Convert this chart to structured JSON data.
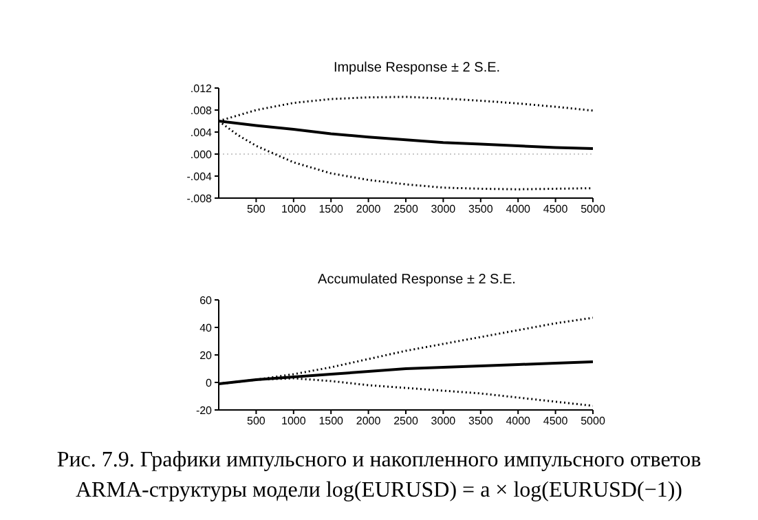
{
  "chart_data": [
    {
      "type": "line",
      "title": "Impulse Response ± 2 S.E.",
      "xlim": [
        0,
        5000
      ],
      "xticks": [
        500,
        1000,
        1500,
        2000,
        2500,
        3000,
        3500,
        4000,
        4500,
        5000
      ],
      "ylim": [
        -0.008,
        0.012
      ],
      "yticks": [
        {
          "value": 0.012,
          "label": ".012"
        },
        {
          "value": 0.008,
          "label": ".008"
        },
        {
          "value": 0.004,
          "label": ".004"
        },
        {
          "value": 0,
          "label": ".000"
        },
        {
          "value": -0.004,
          "label": "-.004"
        },
        {
          "value": -0.008,
          "label": "-.008"
        }
      ],
      "ref_lines": [
        {
          "axis": "y",
          "value": 0,
          "color": "#c8c8c8",
          "line_style": "dotted"
        }
      ],
      "series": [
        {
          "color": "#000000",
          "line_style": "dotted",
          "x": [
            0,
            500,
            1000,
            1500,
            2000,
            2500,
            3000,
            3500,
            4000,
            4500,
            5000
          ],
          "values": [
            0.006,
            0.008,
            0.0093,
            0.01,
            0.0103,
            0.0104,
            0.0101,
            0.0097,
            0.0092,
            0.0086,
            0.0079
          ]
        },
        {
          "color": "#000000",
          "line_style": "solid",
          "x": [
            0,
            500,
            1000,
            1500,
            2000,
            2500,
            3000,
            3500,
            4000,
            4500,
            5000
          ],
          "values": [
            0.006,
            0.0052,
            0.0045,
            0.0037,
            0.0031,
            0.0026,
            0.0021,
            0.0018,
            0.0015,
            0.0012,
            0.001
          ]
        },
        {
          "color": "#000000",
          "line_style": "dotted",
          "x": [
            0,
            250,
            500,
            1000,
            1500,
            2000,
            2500,
            3000,
            3500,
            4000,
            4500,
            5000
          ],
          "values": [
            0.006,
            0.0035,
            0.0015,
            -0.0015,
            -0.0035,
            -0.0047,
            -0.0055,
            -0.0061,
            -0.0063,
            -0.0064,
            -0.0063,
            -0.0062
          ]
        }
      ]
    },
    {
      "type": "line",
      "title": "Accumulated Response ± 2 S.E.",
      "xlim": [
        0,
        5000
      ],
      "xticks": [
        500,
        1000,
        1500,
        2000,
        2500,
        3000,
        3500,
        4000,
        4500,
        5000
      ],
      "ylim": [
        -20,
        60
      ],
      "yticks": [
        60,
        40,
        20,
        0,
        -20
      ],
      "annotations": [
        "Рис. 7.9. Графики импульсного и накопленного импульсного ответов",
        "ARMA-структуры модели log(EURUSD) = a × log(EURUSD(−1))"
      ],
      "series": [
        {
          "color": "#000000",
          "line_style": "dotted",
          "x": [
            0,
            500,
            1000,
            1500,
            2000,
            2500,
            3000,
            3500,
            4000,
            4500,
            5000
          ],
          "values": [
            -1,
            2,
            6,
            11,
            17,
            23,
            28,
            33,
            38,
            43,
            47
          ]
        },
        {
          "color": "#000000",
          "line_style": "solid",
          "x": [
            0,
            500,
            1000,
            1500,
            2000,
            2500,
            3000,
            3500,
            4000,
            4500,
            5000
          ],
          "values": [
            -1,
            2,
            4,
            6,
            8,
            10,
            11,
            12,
            13,
            14,
            15
          ]
        },
        {
          "color": "#000000",
          "line_style": "dotted",
          "x": [
            0,
            500,
            1000,
            1500,
            2000,
            2500,
            3000,
            3500,
            4000,
            4500,
            5000
          ],
          "values": [
            -1,
            2,
            3,
            1,
            -2,
            -4,
            -6,
            -8,
            -11,
            -14,
            -17
          ]
        }
      ]
    }
  ]
}
